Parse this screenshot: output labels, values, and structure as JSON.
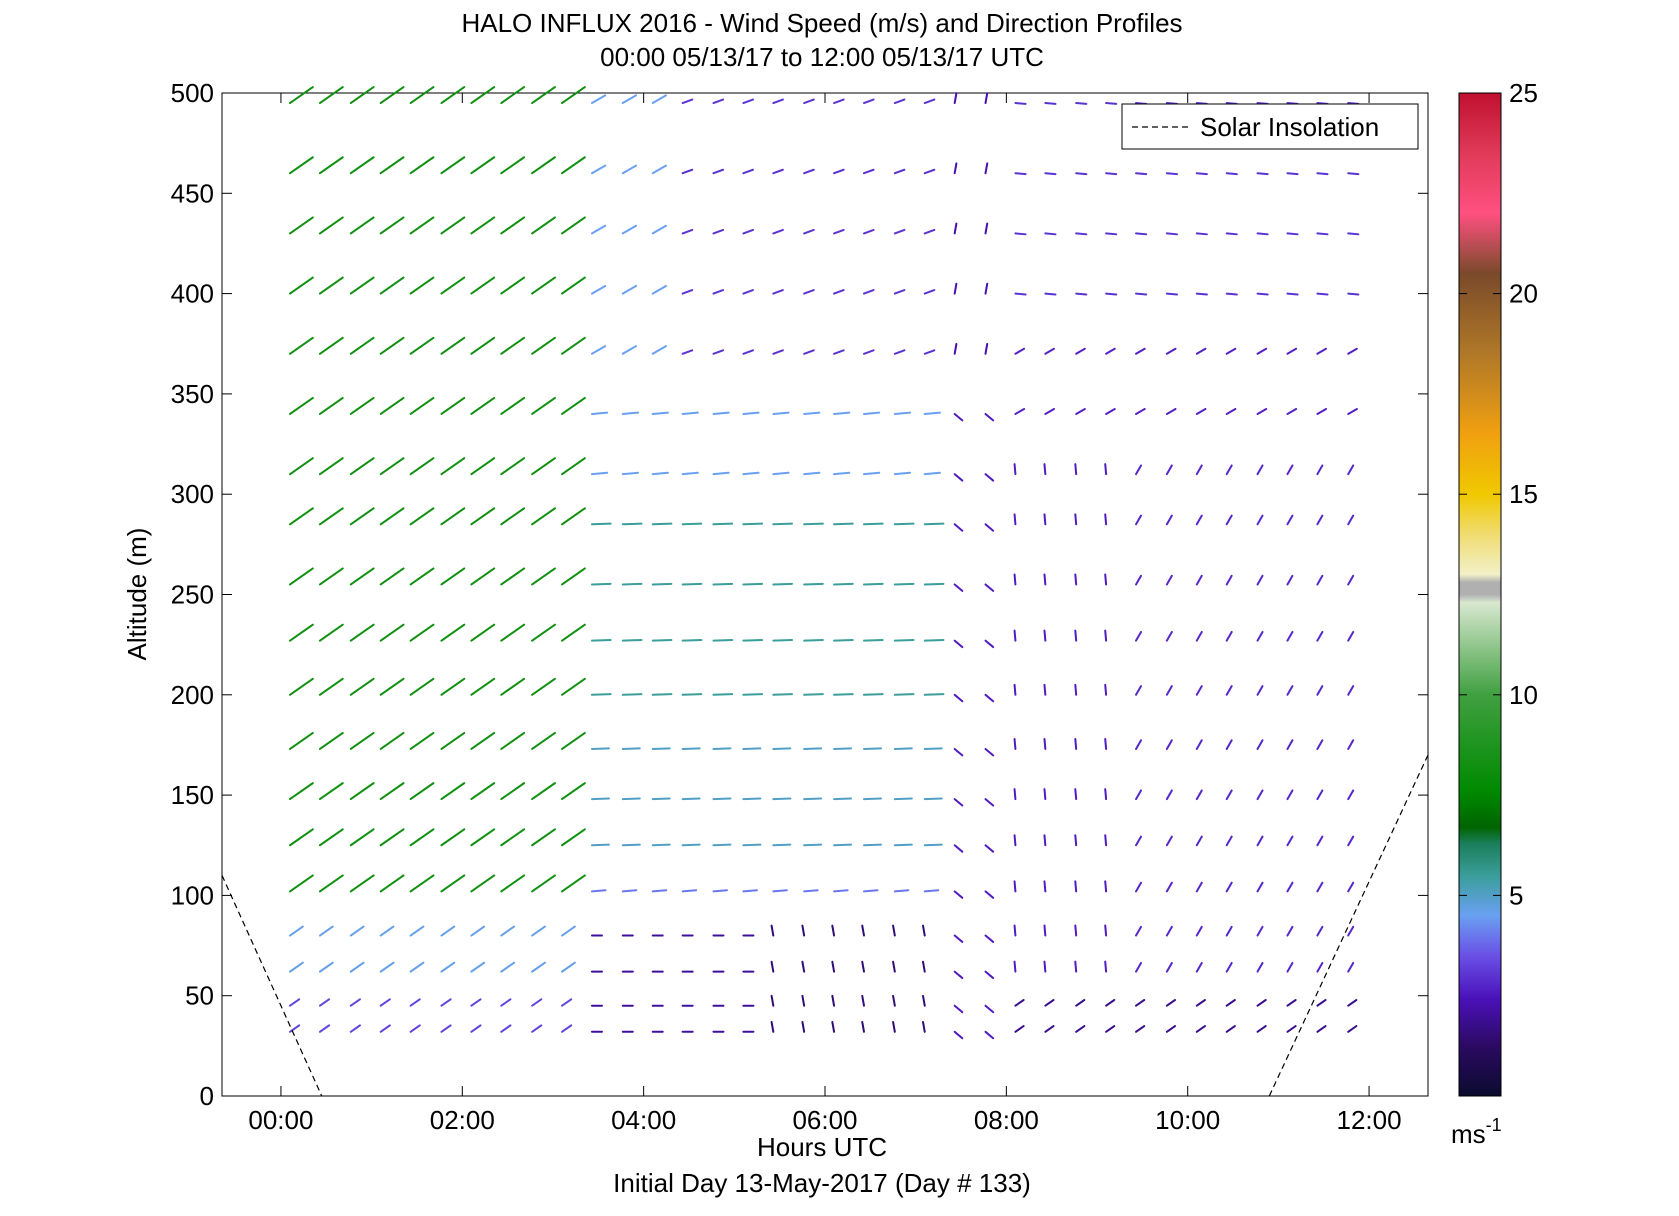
{
  "chart_data": {
    "type": "quiver",
    "title": "HALO INFLUX 2016 - Wind Speed (m/s) and Direction Profiles",
    "subtitle": "00:00 05/13/17 to 12:00 05/13/17  UTC",
    "xlabel": "Hours UTC",
    "xlabel2": "Initial Day 13-May-2017 (Day # 133)",
    "ylabel": "Altitude (m)",
    "xlim": [
      -0.65,
      12.65
    ],
    "ylim": [
      0,
      500
    ],
    "xticks": [
      0,
      2,
      4,
      6,
      8,
      10,
      12
    ],
    "xtick_labels": [
      "00:00",
      "02:00",
      "04:00",
      "06:00",
      "08:00",
      "10:00",
      "12:00"
    ],
    "yticks": [
      0,
      50,
      100,
      150,
      200,
      250,
      300,
      350,
      400,
      450,
      500
    ],
    "ytick_labels": [
      "0",
      "50",
      "100",
      "150",
      "200",
      "250",
      "300",
      "350",
      "400",
      "450",
      "500"
    ],
    "legend": {
      "label": "Solar Insolation",
      "position": "top-right"
    },
    "colorbar": {
      "range": [
        0,
        25
      ],
      "ticks": [
        5,
        10,
        15,
        20,
        25
      ],
      "tick_labels": [
        "5",
        "10",
        "15",
        "20",
        "25"
      ],
      "unit_label": "ms",
      "unit_exponent": "-1",
      "stops": [
        {
          "v": 0,
          "color": "#0b0b30"
        },
        {
          "v": 1.2,
          "color": "#2a0a60"
        },
        {
          "v": 2.4,
          "color": "#4a10b8"
        },
        {
          "v": 3.5,
          "color": "#6a50e6"
        },
        {
          "v": 4.5,
          "color": "#6aa0f2"
        },
        {
          "v": 5.5,
          "color": "#3a9e9a"
        },
        {
          "v": 6.3,
          "color": "#1a7e5a"
        },
        {
          "v": 6.7,
          "color": "#006400"
        },
        {
          "v": 7.6,
          "color": "#008a00"
        },
        {
          "v": 10,
          "color": "#40a040"
        },
        {
          "v": 12.3,
          "color": "#d8e8d0"
        },
        {
          "v": 12.5,
          "color": "#b0b0b0"
        },
        {
          "v": 12.8,
          "color": "#b0b0b0"
        },
        {
          "v": 13.0,
          "color": "#f2f0c8"
        },
        {
          "v": 14,
          "color": "#f0dc70"
        },
        {
          "v": 15,
          "color": "#f0c800"
        },
        {
          "v": 16.5,
          "color": "#f0a010"
        },
        {
          "v": 18.5,
          "color": "#b07828"
        },
        {
          "v": 20.5,
          "color": "#7a4a2a"
        },
        {
          "v": 22,
          "color": "#ff5080"
        },
        {
          "v": 23.5,
          "color": "#e03a58"
        },
        {
          "v": 25,
          "color": "#c01030"
        }
      ]
    },
    "solar_insolation": {
      "style": "dashed",
      "segments": [
        [
          [
            -0.65,
            110
          ],
          [
            0.45,
            0
          ]
        ],
        [
          [
            10.9,
            0
          ],
          [
            12.65,
            170
          ]
        ]
      ]
    },
    "altitudes": [
      495,
      460,
      430,
      400,
      370,
      340,
      310,
      285,
      255,
      227,
      200,
      173,
      148,
      125,
      102,
      80,
      62,
      45,
      32
    ],
    "times": [
      0.1,
      0.43,
      0.77,
      1.1,
      1.43,
      1.77,
      2.1,
      2.43,
      2.77,
      3.1,
      3.43,
      3.77,
      4.1,
      4.43,
      4.77,
      5.1,
      5.43,
      5.77,
      6.1,
      6.43,
      6.77,
      7.1,
      7.43,
      7.77,
      8.1,
      8.43,
      8.77,
      9.1,
      9.43,
      9.77,
      10.1,
      10.43,
      10.77,
      11.1,
      11.43,
      11.77
    ],
    "quiver_regions": [
      {
        "t0": 0,
        "t1": 3.3,
        "z0": 100,
        "z1": 500,
        "dir": 235,
        "speed": 8.2
      },
      {
        "t0": 0,
        "t1": 3.3,
        "z0": 50,
        "z1": 99,
        "dir": 235,
        "speed": 4.6
      },
      {
        "t0": 0,
        "t1": 3.3,
        "z0": 0,
        "z1": 49,
        "dir": 235,
        "speed": 3.3
      },
      {
        "t0": 3.3,
        "t1": 4.2,
        "z0": 355,
        "z1": 500,
        "dir": 240,
        "speed": 4.5
      },
      {
        "t0": 3.3,
        "t1": 7.2,
        "z0": 290,
        "z1": 354,
        "dir": 265,
        "speed": 4.5
      },
      {
        "t0": 3.3,
        "t1": 7.2,
        "z0": 200,
        "z1": 289,
        "dir": 268,
        "speed": 5.5
      },
      {
        "t0": 3.3,
        "t1": 7.2,
        "z0": 120,
        "z1": 199,
        "dir": 268,
        "speed": 5.0
      },
      {
        "t0": 3.3,
        "t1": 7.2,
        "z0": 85,
        "z1": 119,
        "dir": 265,
        "speed": 4.0
      },
      {
        "t0": 3.3,
        "t1": 5.4,
        "z0": 0,
        "z1": 84,
        "dir": 270,
        "speed": 2.0
      },
      {
        "t0": 5.4,
        "t1": 8.6,
        "z0": 0,
        "z1": 84,
        "dir": 170,
        "speed": 1.5
      },
      {
        "t0": 4.2,
        "t1": 7.2,
        "z0": 355,
        "z1": 500,
        "dir": 250,
        "speed": 3.0
      },
      {
        "t0": 7.2,
        "t1": 8.1,
        "z0": 355,
        "z1": 500,
        "dir": 190,
        "speed": 2.3
      },
      {
        "t0": 7.2,
        "t1": 8.1,
        "z0": 0,
        "z1": 354,
        "dir": 310,
        "speed": 2.6
      },
      {
        "t0": 8.1,
        "t1": 9.3,
        "z0": 50,
        "z1": 330,
        "dir": 175,
        "speed": 2.6
      },
      {
        "t0": 9.3,
        "t1": 12.0,
        "z0": 50,
        "z1": 330,
        "dir": 210,
        "speed": 2.8
      },
      {
        "t0": 8.1,
        "t1": 12.0,
        "z0": 331,
        "z1": 390,
        "dir": 240,
        "speed": 2.7
      },
      {
        "t0": 8.1,
        "t1": 12.0,
        "z0": 391,
        "z1": 500,
        "dir": 275,
        "speed": 3.0
      },
      {
        "t0": 8.1,
        "t1": 12.0,
        "z0": 0,
        "z1": 49,
        "dir": 235,
        "speed": 1.8
      }
    ]
  }
}
